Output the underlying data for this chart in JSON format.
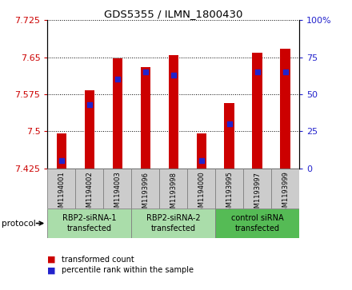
{
  "title": "GDS5355 / ILMN_1800430",
  "samples": [
    "GSM1194001",
    "GSM1194002",
    "GSM1194003",
    "GSM1193996",
    "GSM1193998",
    "GSM1194000",
    "GSM1193995",
    "GSM1193997",
    "GSM1193999"
  ],
  "transformed_count": [
    7.495,
    7.583,
    7.648,
    7.63,
    7.655,
    7.495,
    7.557,
    7.66,
    7.668
  ],
  "percentile_rank": [
    5,
    43,
    60,
    65,
    63,
    5,
    30,
    65,
    65
  ],
  "ymin": 7.425,
  "ymax": 7.725,
  "yticks": [
    7.425,
    7.5,
    7.575,
    7.65,
    7.725
  ],
  "ytick_labels": [
    "7.425",
    "7.5",
    "7.575",
    "7.65",
    "7.725"
  ],
  "y2min": 0,
  "y2max": 100,
  "y2ticks": [
    0,
    25,
    50,
    75,
    100
  ],
  "y2tick_labels": [
    "0",
    "25",
    "50",
    "75",
    "100%"
  ],
  "bar_color": "#cc0000",
  "dot_color": "#2222cc",
  "bar_bottom": 7.425,
  "bar_width": 0.35,
  "protocols": [
    {
      "label": "RBP2-siRNA-1\ntransfected",
      "start": 0,
      "end": 3,
      "color": "#aaddaa"
    },
    {
      "label": "RBP2-siRNA-2\ntransfected",
      "start": 3,
      "end": 6,
      "color": "#aaddaa"
    },
    {
      "label": "control siRNA\ntransfected",
      "start": 6,
      "end": 9,
      "color": "#55bb55"
    }
  ],
  "legend_items": [
    {
      "label": "transformed count",
      "color": "#cc0000"
    },
    {
      "label": "percentile rank within the sample",
      "color": "#2222cc"
    }
  ],
  "left_axis_color": "#cc0000",
  "right_axis_color": "#2222cc",
  "sample_cell_color": "#cccccc",
  "protocol_label": "protocol"
}
